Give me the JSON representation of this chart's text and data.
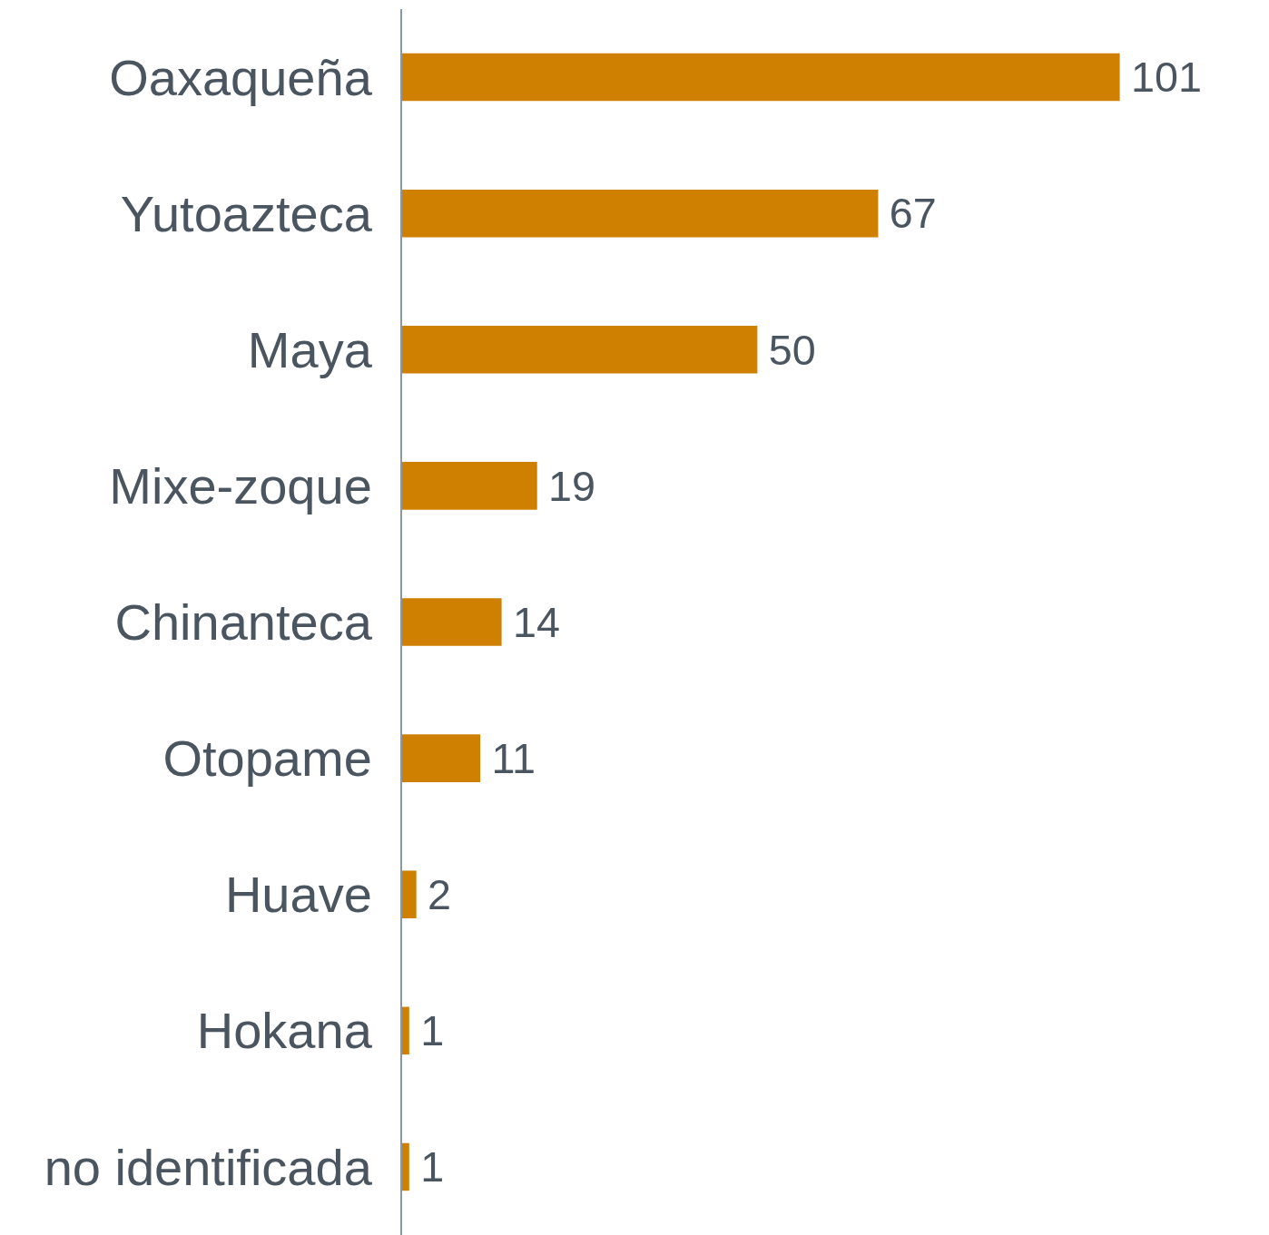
{
  "chart_data": {
    "type": "bar",
    "orientation": "horizontal",
    "categories": [
      "Oaxaqueña",
      "Yutoazteca",
      "Maya",
      "Mixe-zoque",
      "Chinanteca",
      "Otopame",
      "Huave",
      "Hokana",
      "no identificada"
    ],
    "values": [
      101,
      67,
      50,
      19,
      14,
      11,
      2,
      1,
      1
    ],
    "color": "#d08000",
    "data_labels": true
  }
}
